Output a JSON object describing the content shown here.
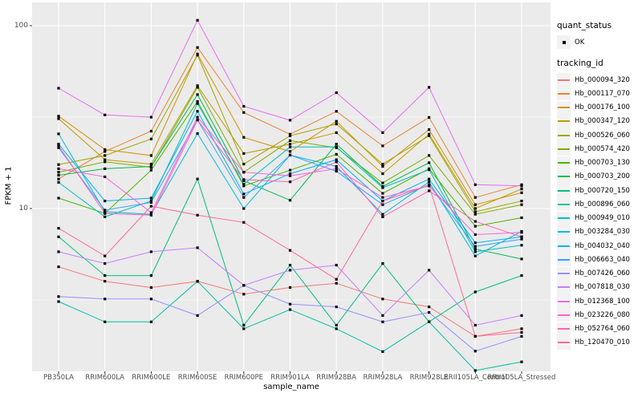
{
  "axes": {
    "x_title": "sample_name",
    "y_title": "FPKM + 1",
    "y_ticks": [
      {
        "label": "100",
        "value": 100
      },
      {
        "label": "10",
        "value": 10
      }
    ]
  },
  "legend": {
    "quant_status": {
      "title": "quant_status",
      "items": [
        {
          "label": "OK"
        }
      ]
    },
    "tracking_id": {
      "title": "tracking_id"
    }
  },
  "chart_data": {
    "type": "line",
    "title": "",
    "xlabel": "sample_name",
    "ylabel": "FPKM + 1",
    "y_scale": "log10",
    "ylim": [
      1.2,
      115
    ],
    "grid": true,
    "legend_position": "right",
    "panel_bg": "#EBEBEB",
    "grid_color": "#FFFFFF",
    "point_color": "#000000",
    "quant_status": "OK",
    "categories": [
      "PB350LA",
      "RRIM600LA",
      "RRIM600LE",
      "RRIM600SE",
      "RRIM600PE",
      "RRIM901LA",
      "RRIM928BA",
      "RRIM928LA",
      "RRIM928LE",
      "RRII105LA_Control",
      "RRII105LA_Stressed"
    ],
    "series": [
      {
        "name": "Hb_000094_320",
        "color": "#F8766D",
        "values": [
          4.8,
          4.0,
          3.7,
          4.0,
          3.4,
          3.7,
          3.9,
          3.2,
          2.9,
          2.0,
          2.2
        ]
      },
      {
        "name": "Hb_000117_070",
        "color": "#EA8331",
        "values": [
          14.5,
          20.5,
          26.5,
          76,
          33.5,
          25.5,
          34,
          22,
          31.5,
          11.5,
          13.5
        ]
      },
      {
        "name": "Hb_000176_100",
        "color": "#D89000",
        "values": [
          32,
          21,
          19.5,
          70,
          24.5,
          20.5,
          30,
          17,
          27,
          10.5,
          12.2
        ]
      },
      {
        "name": "Hb_000347_120",
        "color": "#C09B00",
        "values": [
          31,
          18.5,
          17.5,
          47,
          20,
          22.5,
          26,
          15.5,
          25.5,
          10,
          12.8
        ]
      },
      {
        "name": "Hb_000526_060",
        "color": "#A3A500",
        "values": [
          17.4,
          19.5,
          24,
          69,
          17.5,
          25,
          29,
          17.5,
          25,
          9.6,
          11
        ]
      },
      {
        "name": "Hb_000574_420",
        "color": "#7CAE00",
        "values": [
          15.8,
          18,
          16.8,
          46,
          15.8,
          23.5,
          21.5,
          13.8,
          19.5,
          9.3,
          10.5
        ]
      },
      {
        "name": "Hb_000703_130",
        "color": "#49B500",
        "values": [
          11.4,
          9.4,
          16.2,
          38.5,
          13.3,
          16.2,
          19.8,
          12.1,
          16.5,
          8.0,
          8.9
        ]
      },
      {
        "name": "Hb_000703_200",
        "color": "#00BB4E",
        "values": [
          15.2,
          16.5,
          17.0,
          42,
          14.2,
          11.1,
          22.5,
          13.2,
          17.8,
          6.0,
          5.3
        ]
      },
      {
        "name": "Hb_000720_150",
        "color": "#00BF7D",
        "values": [
          7.0,
          4.3,
          4.3,
          14.5,
          2.3,
          4.9,
          2.3,
          5.0,
          2.4,
          3.5,
          4.3
        ]
      },
      {
        "name": "Hb_000896_060",
        "color": "#00C1A3",
        "values": [
          3.1,
          2.4,
          2.4,
          4.0,
          2.2,
          2.8,
          2.2,
          1.65,
          2.4,
          1.3,
          1.45
        ]
      },
      {
        "name": "Hb_000949_010",
        "color": "#00BFC4",
        "values": [
          13.9,
          9.0,
          11.0,
          37.5,
          13.6,
          21.7,
          21.7,
          13.0,
          16.3,
          5.8,
          6.3
        ]
      },
      {
        "name": "Hb_003284_030",
        "color": "#00BBDA",
        "values": [
          25.6,
          9.6,
          9.3,
          25.7,
          10.0,
          19.6,
          17.0,
          9.3,
          14.0,
          5.5,
          7.5
        ]
      },
      {
        "name": "Hb_004032_040",
        "color": "#00B0F6",
        "values": [
          22.5,
          11.0,
          11.4,
          34,
          12.0,
          15.5,
          18.5,
          11.0,
          14.5,
          6.5,
          7.0
        ]
      },
      {
        "name": "Hb_006663_040",
        "color": "#35A2FF",
        "values": [
          21.5,
          9.8,
          10.8,
          30.5,
          11.5,
          19.6,
          16.0,
          10.5,
          13.5,
          6.2,
          6.8
        ]
      },
      {
        "name": "Hb_007426_060",
        "color": "#9590FF",
        "values": [
          3.3,
          3.2,
          3.2,
          2.6,
          3.8,
          3.0,
          2.9,
          2.4,
          2.7,
          1.66,
          2.0
        ]
      },
      {
        "name": "Hb_007818_030",
        "color": "#C77CFF",
        "values": [
          5.8,
          5.0,
          5.8,
          6.1,
          3.8,
          4.6,
          4.9,
          2.6,
          4.6,
          2.3,
          2.6
        ]
      },
      {
        "name": "Hb_012368_100",
        "color": "#E76BF3",
        "values": [
          45.5,
          32.5,
          31.6,
          107,
          36.2,
          30.4,
          43,
          26,
          46,
          13.5,
          13.3
        ]
      },
      {
        "name": "Hb_023226_080",
        "color": "#FA62DB",
        "values": [
          16.5,
          14.9,
          9.5,
          31.6,
          15.8,
          15.1,
          16.5,
          11.5,
          13.3,
          7.2,
          7.4
        ]
      },
      {
        "name": "Hb_052764_060",
        "color": "#FF62BC",
        "values": [
          22.0,
          9.4,
          9.2,
          30.5,
          14.4,
          14.0,
          18.0,
          9.0,
          12.5,
          8.5,
          7.0
        ]
      },
      {
        "name": "Hb_120470_010",
        "color": "#FF6A98",
        "values": [
          7.8,
          5.5,
          10.3,
          9.2,
          8.4,
          5.9,
          4.1,
          11.0,
          13.4,
          2.0,
          2.1
        ]
      }
    ]
  }
}
